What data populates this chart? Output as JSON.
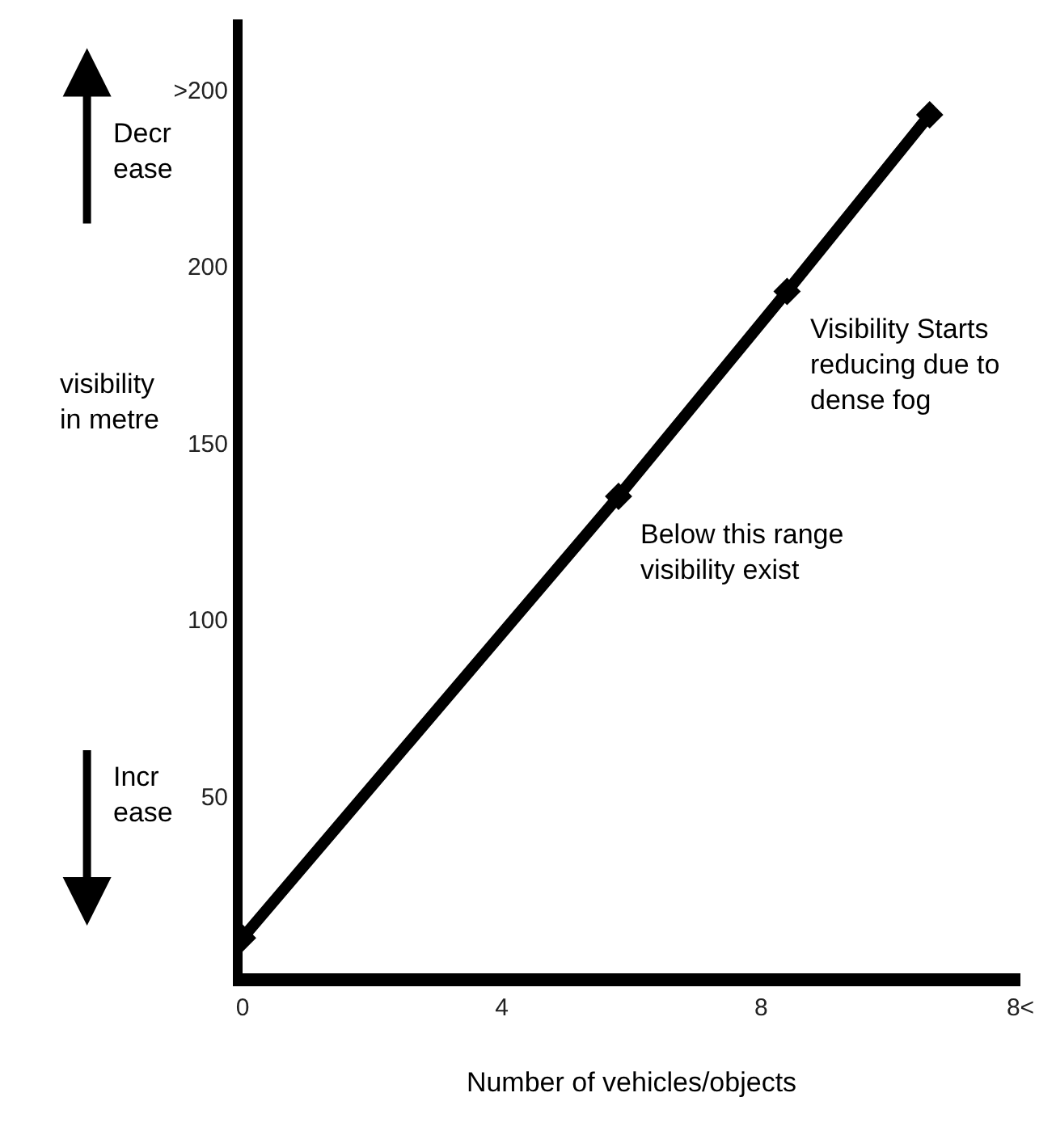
{
  "chart_data": {
    "type": "line",
    "xlabel": "Number of vehicles/objects",
    "ylabel": "visibility\nin metre",
    "x": [
      0,
      5.8,
      8.4,
      10.6
    ],
    "series": [
      {
        "color": "#000000",
        "values": [
          10,
          135,
          193,
          243
        ]
      }
    ],
    "xlim": [
      0,
      12
    ],
    "xticks": [
      0,
      4,
      8,
      {
        "value": 12,
        "label": "8<"
      }
    ],
    "ylim": [
      0,
      270
    ],
    "yticks": [
      50,
      100,
      150,
      200,
      {
        "value": 250,
        "label": ">200"
      }
    ],
    "legend": false,
    "marker": "diamond",
    "line_style": "solid",
    "annotations": [
      {
        "text": "Below this range\nvisibility exist",
        "x": 5.8,
        "y": 135
      },
      {
        "text": "Visibility Starts\nreducing due to\ndense fog",
        "x": 8.4,
        "y": 193
      },
      "Decr\nease",
      "Incr\nease"
    ]
  }
}
